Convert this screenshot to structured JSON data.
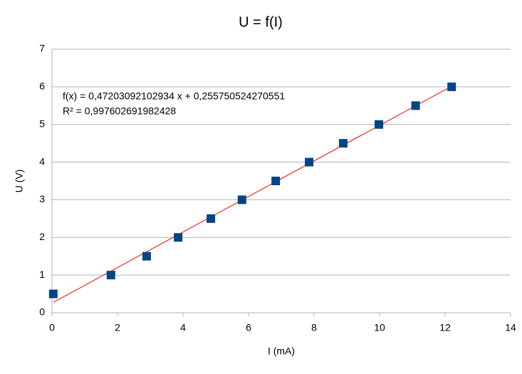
{
  "chart_data": {
    "type": "scatter",
    "title": "U = f(I)",
    "x_label": "I (mA)",
    "y_label": "U (V)",
    "series": [
      {
        "name": "U",
        "color": "#004586",
        "x": [
          0.04,
          1.8,
          2.89,
          3.85,
          4.85,
          5.8,
          6.83,
          7.85,
          8.89,
          9.98,
          11.1,
          12.2
        ],
        "values": [
          0.5,
          1,
          1.5,
          2,
          2.5,
          3,
          3.5,
          4,
          4.5,
          5,
          5.5,
          6
        ]
      }
    ],
    "trendline": {
      "color": "#ff0000",
      "slope": 0.47203092102934,
      "intercept": 0.255750524270551,
      "equation": "f(x) = 0,47203092102934 x + 0,255750524270551",
      "r2": "R² = 0,997602691982428"
    },
    "xlim": [
      0,
      14
    ],
    "xticks": [
      0,
      2,
      4,
      6,
      8,
      10,
      12,
      14
    ],
    "ylim": [
      0,
      7
    ],
    "yticks": [
      0,
      1,
      2,
      3,
      4,
      5,
      6,
      7
    ],
    "grid": true
  }
}
